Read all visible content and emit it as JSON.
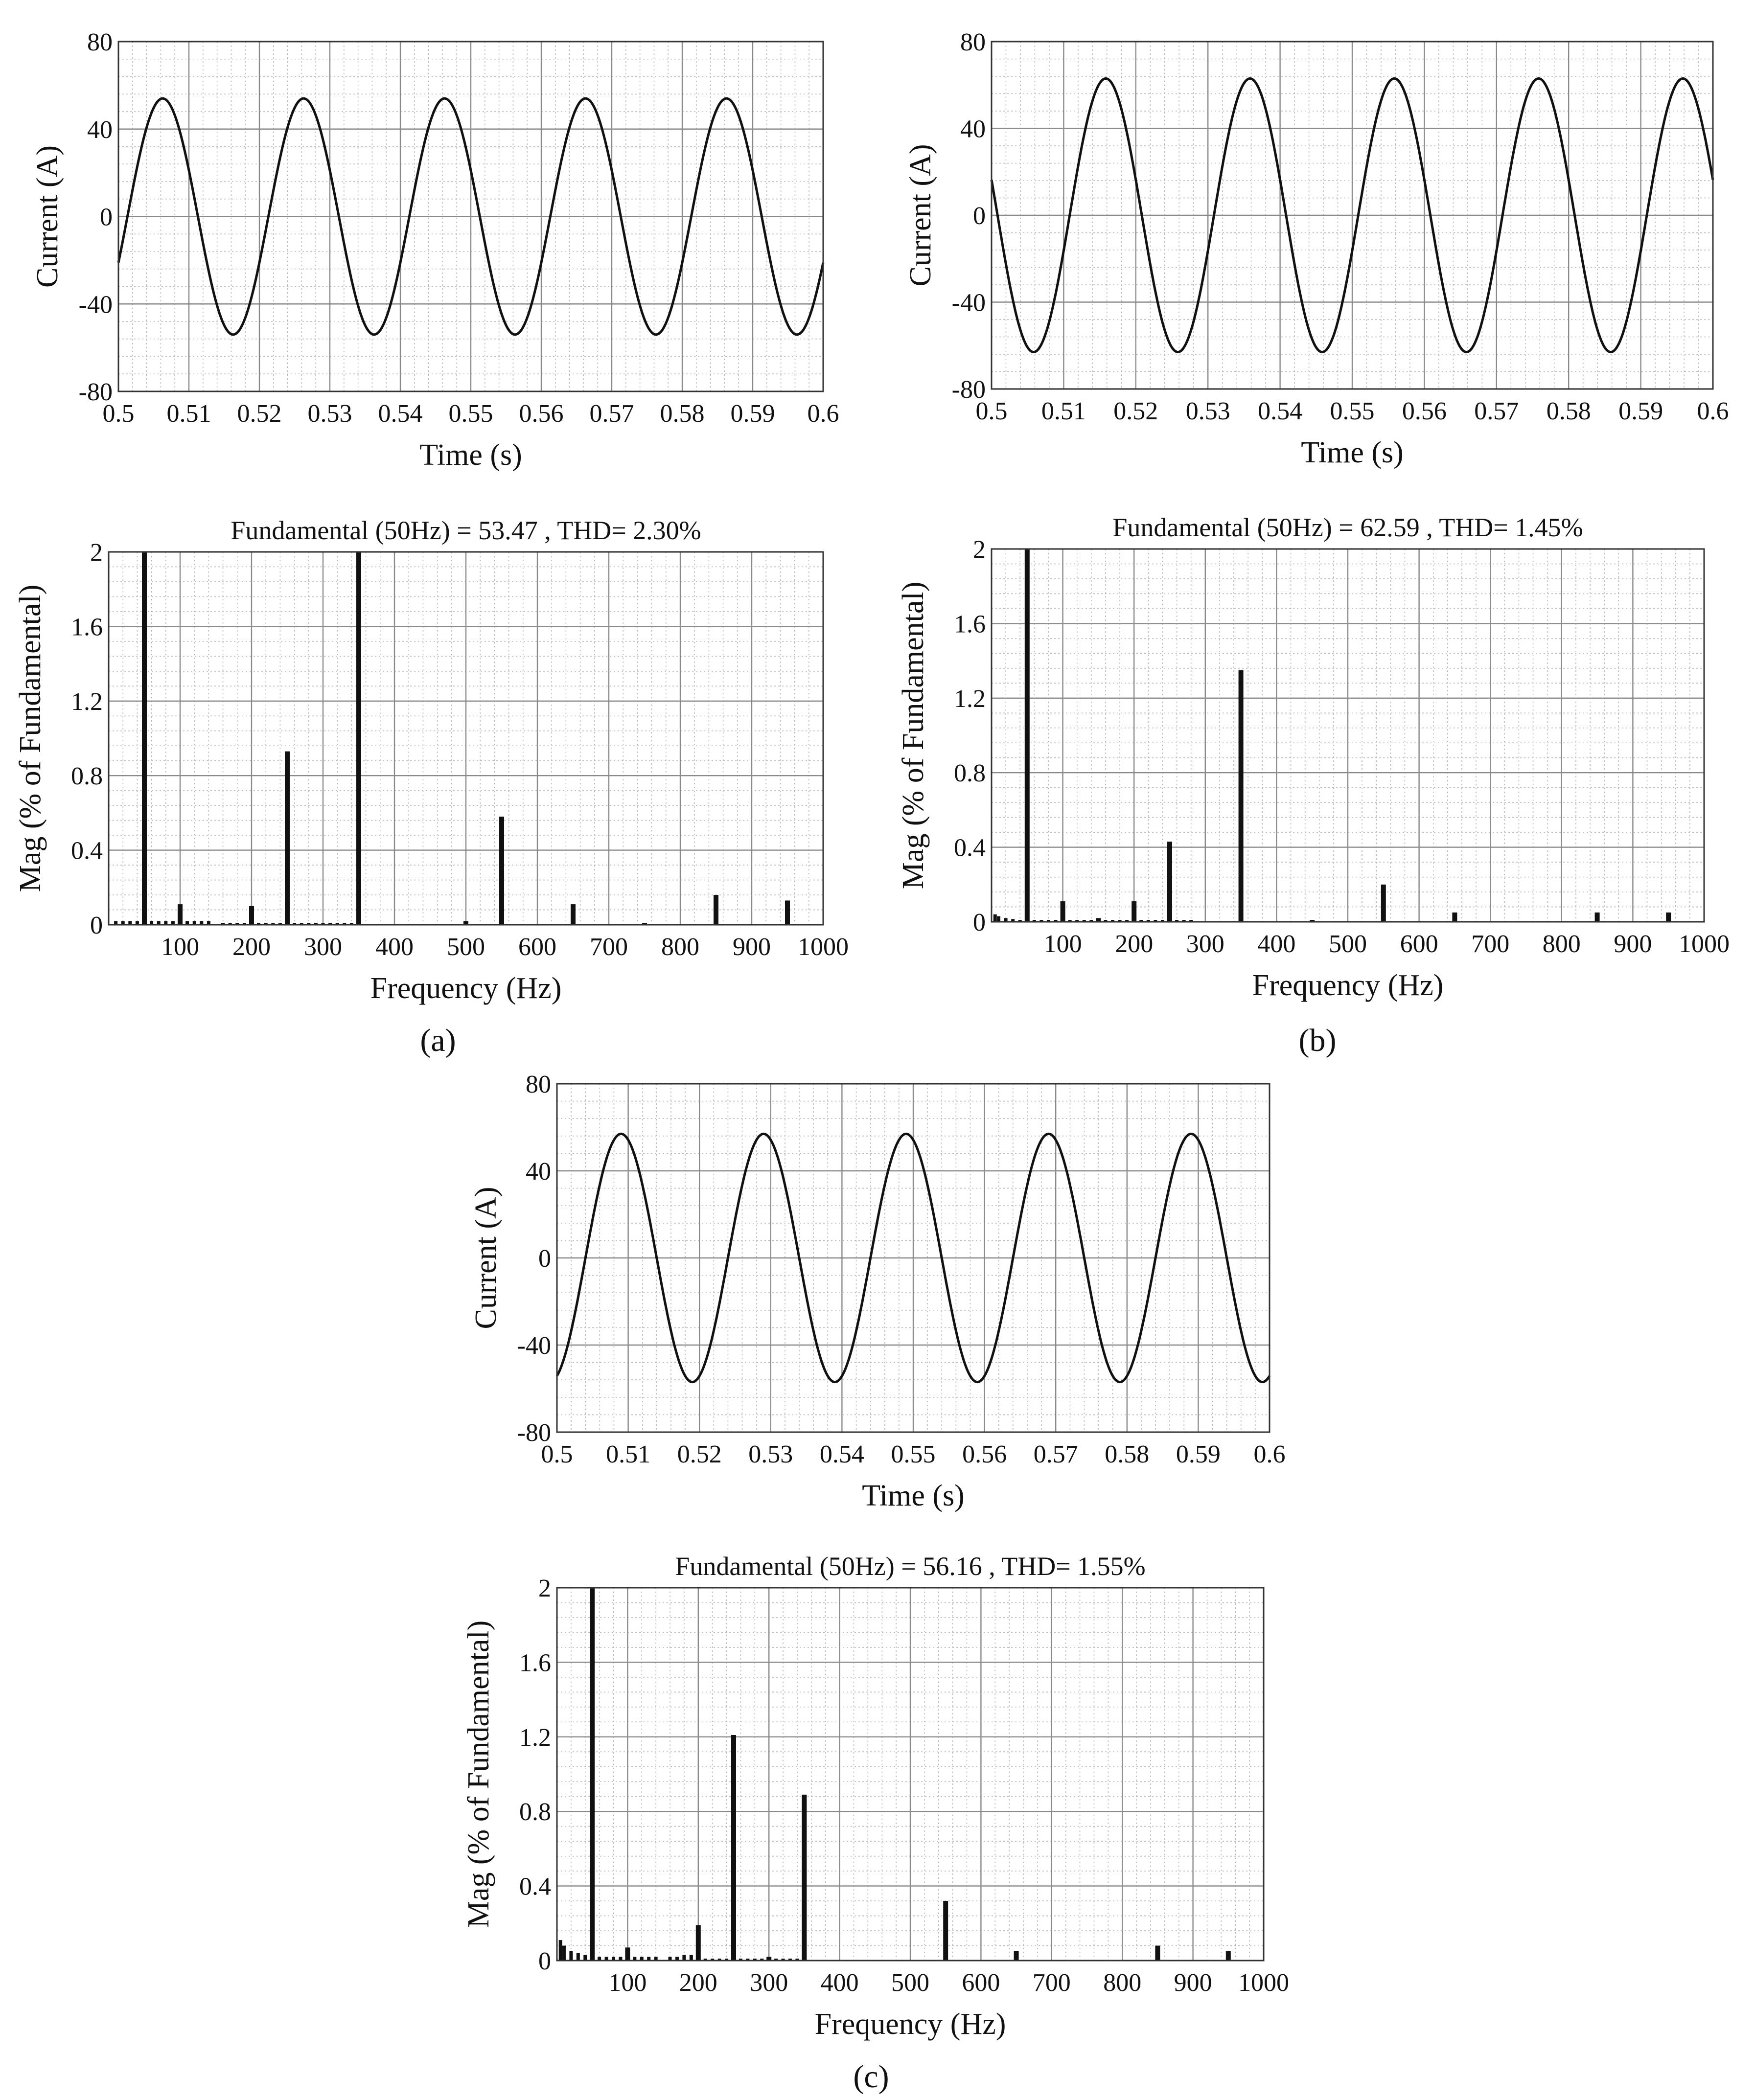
{
  "figure": {
    "panels": [
      {
        "id": "a",
        "label": "(a)"
      },
      {
        "id": "b",
        "label": "(b)"
      },
      {
        "id": "c",
        "label": "(c)"
      }
    ]
  },
  "chart_data": [
    {
      "panel": "a",
      "kind": "waveform",
      "type": "line",
      "title": "",
      "xlabel": "Time (s)",
      "ylabel": "Current (A)",
      "xlim": [
        0.5,
        0.6
      ],
      "ylim": [
        -80,
        80
      ],
      "xticks": [
        "0.5",
        "0.51",
        "0.52",
        "0.53",
        "0.54",
        "0.55",
        "0.56",
        "0.57",
        "0.58",
        "0.59",
        "0.6"
      ],
      "yticks": [
        "80",
        "40",
        "0",
        "-40",
        "-80"
      ],
      "series": [
        {
          "name": "current",
          "amplitude": 54,
          "frequency_hz": 50,
          "phase_deg": -23
        }
      ],
      "grid": true
    },
    {
      "panel": "a",
      "kind": "spectrum",
      "type": "bar",
      "title": "Fundamental (50Hz) = 53.47 , THD= 2.30%",
      "xlabel": "Frequency (Hz)",
      "ylabel": "Mag (% of Fundamental)",
      "xlim": [
        0,
        1000
      ],
      "ylim": [
        0,
        2
      ],
      "xticks": [
        "100",
        "200",
        "300",
        "400",
        "500",
        "600",
        "700",
        "800",
        "900",
        "1000"
      ],
      "yticks": [
        "2",
        "1.6",
        "1.2",
        "0.8",
        "0.4",
        "0"
      ],
      "bars": [
        {
          "x": 50,
          "y": 2.0
        },
        {
          "x": 100,
          "y": 0.11
        },
        {
          "x": 200,
          "y": 0.1
        },
        {
          "x": 250,
          "y": 0.93
        },
        {
          "x": 350,
          "y": 2.0
        },
        {
          "x": 500,
          "y": 0.02
        },
        {
          "x": 550,
          "y": 0.58
        },
        {
          "x": 650,
          "y": 0.11
        },
        {
          "x": 750,
          "y": 0.01
        },
        {
          "x": 850,
          "y": 0.16
        },
        {
          "x": 950,
          "y": 0.13
        }
      ],
      "floor_bars": [
        [
          10,
          0.02
        ],
        [
          20,
          0.02
        ],
        [
          30,
          0.02
        ],
        [
          40,
          0.02
        ],
        [
          60,
          0.02
        ],
        [
          70,
          0.02
        ],
        [
          80,
          0.02
        ],
        [
          90,
          0.02
        ],
        [
          110,
          0.02
        ],
        [
          120,
          0.02
        ],
        [
          130,
          0.02
        ],
        [
          140,
          0.02
        ],
        [
          160,
          0.01
        ],
        [
          170,
          0.01
        ],
        [
          180,
          0.01
        ],
        [
          190,
          0.01
        ],
        [
          210,
          0.01
        ],
        [
          220,
          0.01
        ],
        [
          230,
          0.01
        ],
        [
          240,
          0.01
        ],
        [
          260,
          0.01
        ],
        [
          270,
          0.01
        ],
        [
          280,
          0.005
        ],
        [
          290,
          0.005
        ],
        [
          300,
          0.005
        ],
        [
          310,
          0.005
        ],
        [
          320,
          0.005
        ],
        [
          330,
          0.005
        ],
        [
          340,
          0.005
        ]
      ],
      "grid": true
    },
    {
      "panel": "b",
      "kind": "waveform",
      "type": "line",
      "title": "",
      "xlabel": "Time (s)",
      "ylabel": "Current (A)",
      "xlim": [
        0.5,
        0.6
      ],
      "ylim": [
        -80,
        80
      ],
      "xticks": [
        "0.5",
        "0.51",
        "0.52",
        "0.53",
        "0.54",
        "0.55",
        "0.56",
        "0.57",
        "0.58",
        "0.59",
        "0.6"
      ],
      "yticks": [
        "80",
        "40",
        "0",
        "-40",
        "-80"
      ],
      "series": [
        {
          "name": "current",
          "amplitude": 63,
          "frequency_hz": 50,
          "phase_deg": 165
        }
      ],
      "grid": true
    },
    {
      "panel": "b",
      "kind": "spectrum",
      "type": "bar",
      "title": "Fundamental (50Hz) = 62.59 , THD= 1.45%",
      "xlabel": "Frequency (Hz)",
      "ylabel": "Mag (% of Fundamental)",
      "xlim": [
        0,
        1000
      ],
      "ylim": [
        0,
        2
      ],
      "xticks": [
        "100",
        "200",
        "300",
        "400",
        "500",
        "600",
        "700",
        "800",
        "900",
        "1000"
      ],
      "yticks": [
        "2",
        "1.6",
        "1.2",
        "0.8",
        "0.4",
        "0"
      ],
      "bars": [
        {
          "x": 50,
          "y": 2.0
        },
        {
          "x": 100,
          "y": 0.11
        },
        {
          "x": 150,
          "y": 0.02
        },
        {
          "x": 200,
          "y": 0.11
        },
        {
          "x": 250,
          "y": 0.43
        },
        {
          "x": 350,
          "y": 1.35
        },
        {
          "x": 450,
          "y": 0.01
        },
        {
          "x": 550,
          "y": 0.2
        },
        {
          "x": 650,
          "y": 0.05
        },
        {
          "x": 850,
          "y": 0.05
        },
        {
          "x": 950,
          "y": 0.05
        }
      ],
      "floor_bars": [
        [
          5,
          0.04
        ],
        [
          10,
          0.03
        ],
        [
          20,
          0.02
        ],
        [
          30,
          0.015
        ],
        [
          40,
          0.01
        ],
        [
          60,
          0.01
        ],
        [
          70,
          0.01
        ],
        [
          80,
          0.01
        ],
        [
          90,
          0.01
        ],
        [
          110,
          0.01
        ],
        [
          120,
          0.01
        ],
        [
          130,
          0.01
        ],
        [
          140,
          0.01
        ],
        [
          160,
          0.01
        ],
        [
          170,
          0.01
        ],
        [
          180,
          0.01
        ],
        [
          190,
          0.01
        ],
        [
          210,
          0.01
        ],
        [
          220,
          0.01
        ],
        [
          230,
          0.01
        ],
        [
          240,
          0.005
        ],
        [
          260,
          0.005
        ],
        [
          270,
          0.005
        ],
        [
          280,
          0.005
        ]
      ],
      "grid": true
    },
    {
      "panel": "c",
      "kind": "waveform",
      "type": "line",
      "title": "",
      "xlabel": "Time (s)",
      "ylabel": "Current (A)",
      "xlim": [
        0.5,
        0.6
      ],
      "ylim": [
        -80,
        80
      ],
      "xticks": [
        "0.5",
        "0.51",
        "0.52",
        "0.53",
        "0.54",
        "0.55",
        "0.56",
        "0.57",
        "0.58",
        "0.59",
        "0.6"
      ],
      "yticks": [
        "80",
        "40",
        "0",
        "-40",
        "-80"
      ],
      "series": [
        {
          "name": "current",
          "amplitude": 57,
          "frequency_hz": 50,
          "phase_deg": -72
        }
      ],
      "grid": true
    },
    {
      "panel": "c",
      "kind": "spectrum",
      "type": "bar",
      "title": "Fundamental (50Hz) = 56.16 , THD= 1.55%",
      "xlabel": "Frequency (Hz)",
      "ylabel": "Mag (% of Fundamental)",
      "xlim": [
        0,
        1000
      ],
      "ylim": [
        0,
        2
      ],
      "xticks": [
        "100",
        "200",
        "300",
        "400",
        "500",
        "600",
        "700",
        "800",
        "900",
        "1000"
      ],
      "yticks": [
        "2",
        "1.6",
        "1.2",
        "0.8",
        "0.4",
        "0"
      ],
      "bars": [
        {
          "x": 50,
          "y": 2.0
        },
        {
          "x": 100,
          "y": 0.07
        },
        {
          "x": 200,
          "y": 0.19
        },
        {
          "x": 250,
          "y": 1.21
        },
        {
          "x": 300,
          "y": 0.02
        },
        {
          "x": 350,
          "y": 0.89
        },
        {
          "x": 550,
          "y": 0.32
        },
        {
          "x": 650,
          "y": 0.05
        },
        {
          "x": 850,
          "y": 0.08
        },
        {
          "x": 950,
          "y": 0.05
        }
      ],
      "floor_bars": [
        [
          5,
          0.11
        ],
        [
          10,
          0.08
        ],
        [
          20,
          0.05
        ],
        [
          30,
          0.04
        ],
        [
          40,
          0.03
        ],
        [
          60,
          0.02
        ],
        [
          70,
          0.02
        ],
        [
          80,
          0.02
        ],
        [
          90,
          0.02
        ],
        [
          110,
          0.02
        ],
        [
          120,
          0.02
        ],
        [
          130,
          0.02
        ],
        [
          140,
          0.02
        ],
        [
          160,
          0.02
        ],
        [
          170,
          0.02
        ],
        [
          180,
          0.03
        ],
        [
          190,
          0.03
        ],
        [
          210,
          0.01
        ],
        [
          220,
          0.01
        ],
        [
          230,
          0.01
        ],
        [
          240,
          0.01
        ],
        [
          260,
          0.01
        ],
        [
          270,
          0.01
        ],
        [
          280,
          0.01
        ],
        [
          290,
          0.01
        ],
        [
          310,
          0.01
        ],
        [
          320,
          0.01
        ],
        [
          330,
          0.01
        ],
        [
          340,
          0.01
        ]
      ],
      "grid": true
    }
  ]
}
